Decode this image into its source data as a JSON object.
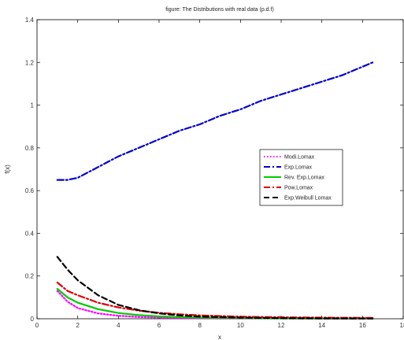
{
  "chart_data": {
    "type": "line",
    "title": "figure: The Distributions with real data (p.d.f)",
    "xlabel": "x",
    "ylabel": "f(x)",
    "xlim": [
      0,
      18
    ],
    "ylim": [
      0,
      1.4
    ],
    "xticks": [
      0,
      2,
      4,
      6,
      8,
      10,
      12,
      14,
      16,
      18
    ],
    "yticks": [
      0,
      0.2,
      0.4,
      0.6,
      0.8,
      1,
      1.2,
      1.4
    ],
    "grid": false,
    "legend_position": "right",
    "series": [
      {
        "name": "Modi.Lomax",
        "color": "#ff00ff",
        "dash": "dotted",
        "x": [
          1,
          1.5,
          2,
          3,
          4,
          5,
          6,
          8,
          10,
          12,
          14,
          16.5
        ],
        "y": [
          0.13,
          0.08,
          0.05,
          0.025,
          0.014,
          0.008,
          0.005,
          0.002,
          0.001,
          0.001,
          0.0,
          0.0
        ]
      },
      {
        "name": "Exp.Lomax",
        "color": "#0000cc",
        "dash": "dashdot",
        "x": [
          1,
          1.5,
          2,
          3,
          4,
          5,
          6,
          7,
          8,
          9,
          10,
          11,
          12,
          13,
          14,
          15,
          16.5
        ],
        "y": [
          0.65,
          0.65,
          0.66,
          0.71,
          0.76,
          0.8,
          0.84,
          0.88,
          0.91,
          0.95,
          0.98,
          1.02,
          1.05,
          1.08,
          1.11,
          1.14,
          1.2
        ]
      },
      {
        "name": "Rev. Exp.Lomax",
        "color": "#00cc00",
        "dash": "solid",
        "x": [
          1,
          1.5,
          2,
          3,
          4,
          5,
          6,
          7,
          8,
          10,
          12,
          14,
          16.5
        ],
        "y": [
          0.14,
          0.1,
          0.075,
          0.045,
          0.027,
          0.017,
          0.011,
          0.008,
          0.005,
          0.003,
          0.002,
          0.001,
          0.001
        ]
      },
      {
        "name": "Pow.Lomax",
        "color": "#dd0000",
        "dash": "dashdot",
        "x": [
          1,
          1.5,
          2,
          3,
          4,
          5,
          6,
          7,
          8,
          10,
          12,
          14,
          16.5
        ],
        "y": [
          0.17,
          0.13,
          0.11,
          0.075,
          0.053,
          0.038,
          0.028,
          0.021,
          0.016,
          0.01,
          0.007,
          0.005,
          0.004
        ]
      },
      {
        "name": "Exp.Weibull Lomax",
        "color": "#000000",
        "dash": "dashed",
        "x": [
          1,
          1.5,
          2,
          3,
          4,
          5,
          6,
          7,
          8,
          10,
          12,
          14,
          16.5
        ],
        "y": [
          0.29,
          0.23,
          0.18,
          0.11,
          0.065,
          0.04,
          0.025,
          0.016,
          0.01,
          0.005,
          0.003,
          0.002,
          0.001
        ]
      }
    ]
  }
}
